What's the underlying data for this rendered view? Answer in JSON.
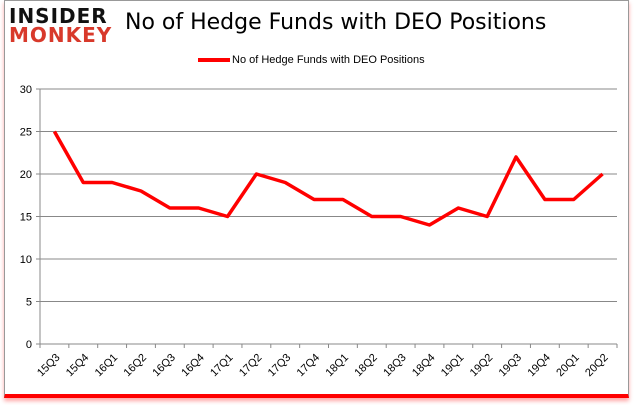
{
  "logo": {
    "line1": "INSIDER",
    "line2": "MONKEY"
  },
  "chart_data": {
    "type": "line",
    "title": "No of Hedge Funds with DEO Positions",
    "categories": [
      "15Q3",
      "15Q4",
      "16Q1",
      "16Q2",
      "16Q3",
      "16Q4",
      "17Q1",
      "17Q2",
      "17Q3",
      "17Q4",
      "18Q1",
      "18Q2",
      "18Q3",
      "18Q4",
      "19Q1",
      "19Q2",
      "19Q3",
      "19Q4",
      "20Q1",
      "20Q2"
    ],
    "series": [
      {
        "name": "No of Hedge Funds with DEO Positions",
        "color": "#ff0000",
        "values": [
          25,
          19,
          19,
          18,
          16,
          16,
          15,
          20,
          19,
          17,
          17,
          15,
          15,
          14,
          16,
          15,
          22,
          17,
          17,
          20
        ]
      }
    ],
    "ylim": [
      0,
      30
    ],
    "yticks": [
      0,
      5,
      10,
      15,
      20,
      25,
      30
    ],
    "grid": true,
    "legend": "top"
  }
}
